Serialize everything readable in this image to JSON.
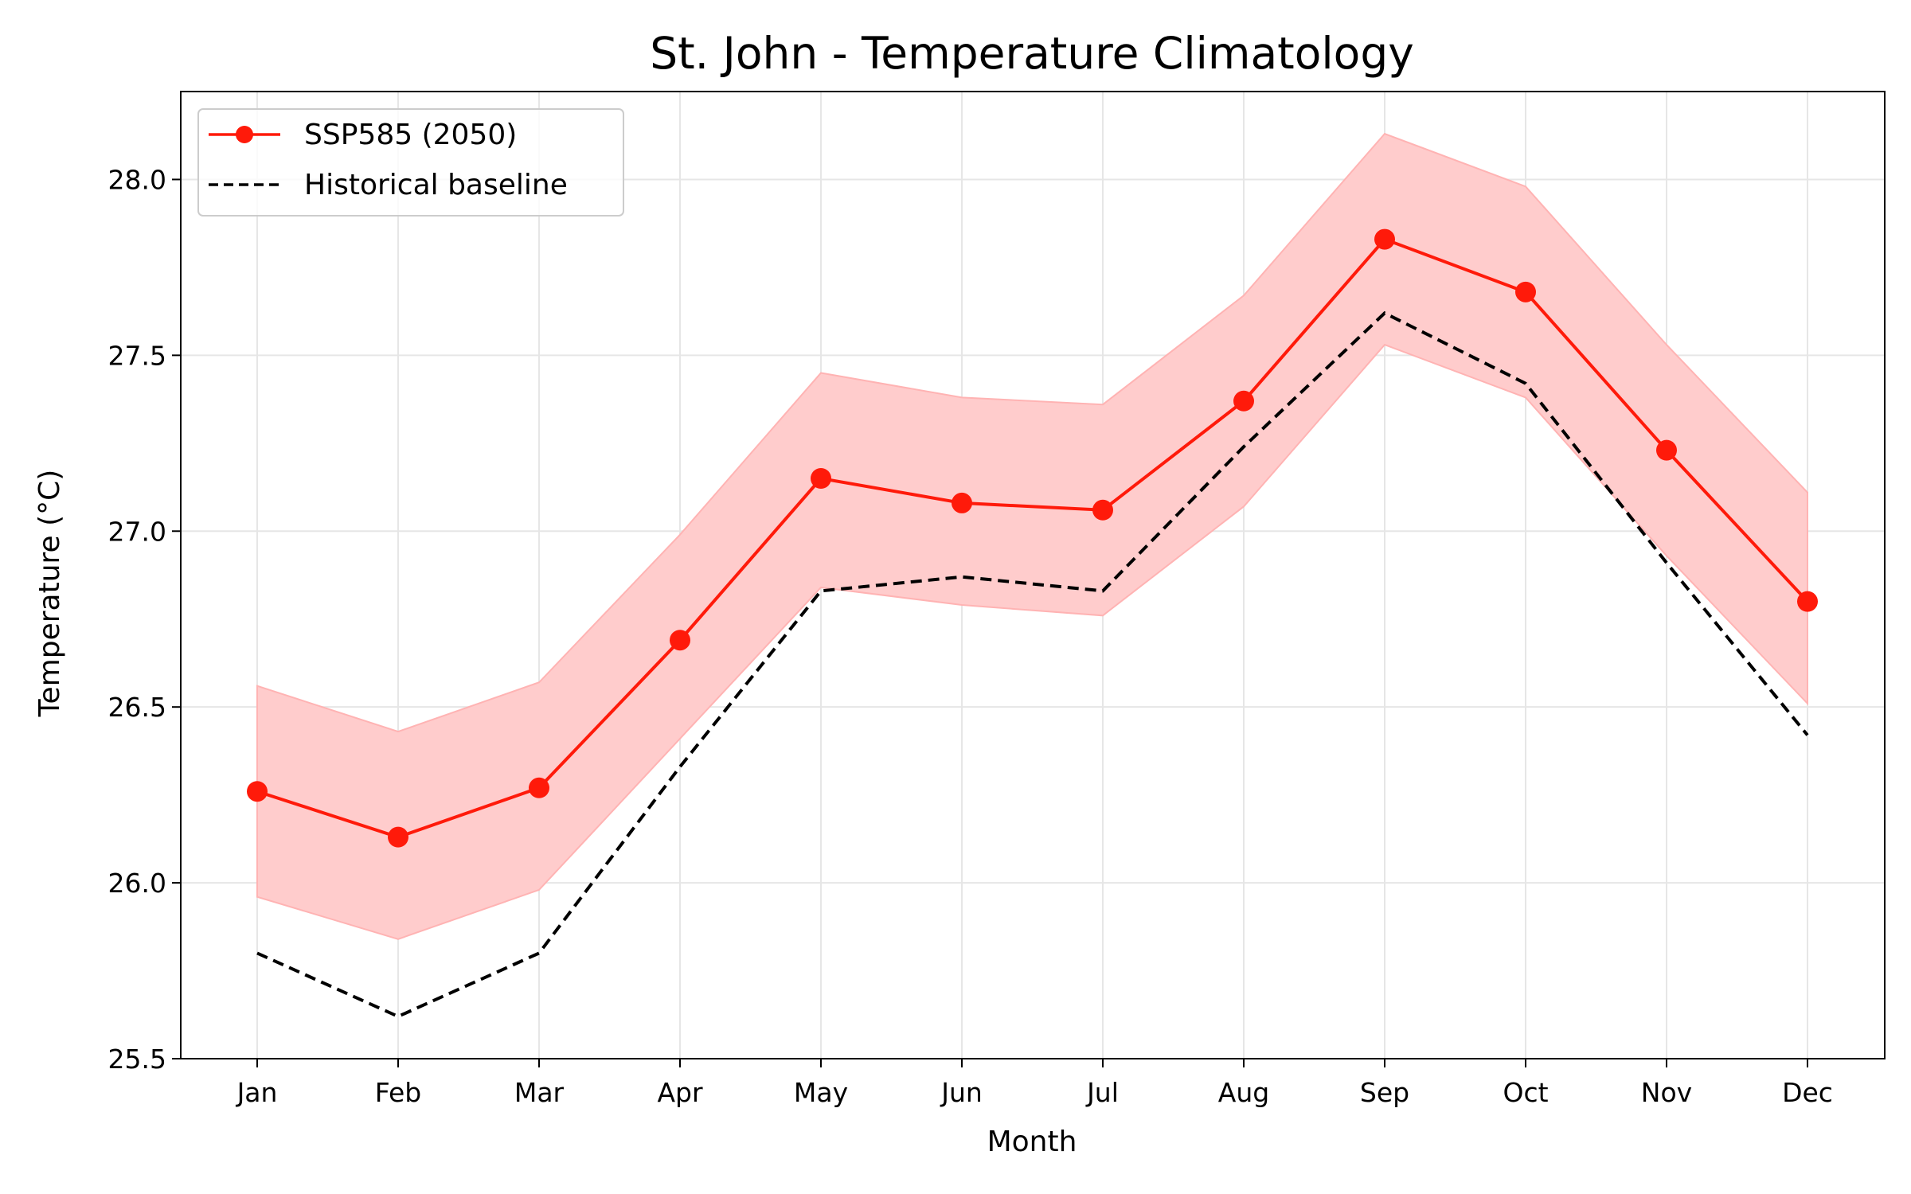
{
  "chart_data": {
    "type": "line",
    "title": "St. John - Temperature Climatology",
    "xlabel": "Month",
    "ylabel": "Temperature (°C)",
    "categories": [
      "Jan",
      "Feb",
      "Mar",
      "Apr",
      "May",
      "Jun",
      "Jul",
      "Aug",
      "Sep",
      "Oct",
      "Nov",
      "Dec"
    ],
    "ylim": [
      25.5,
      28.25
    ],
    "yticks": [
      "25.5",
      "26.0",
      "26.5",
      "27.0",
      "27.5",
      "28.0"
    ],
    "grid": true,
    "legend_position": "top-left",
    "series": [
      {
        "name": "SSP585 (2050)",
        "color": "#ff1a0a",
        "style": "solid-with-markers",
        "values": [
          26.26,
          26.13,
          26.27,
          26.69,
          27.15,
          27.08,
          27.06,
          27.37,
          27.83,
          27.68,
          27.23,
          26.8
        ],
        "band_lower": [
          25.96,
          25.84,
          25.98,
          26.41,
          26.84,
          26.79,
          26.76,
          27.07,
          27.53,
          27.38,
          26.93,
          26.51
        ],
        "band_upper": [
          26.56,
          26.43,
          26.57,
          26.99,
          27.45,
          27.38,
          27.36,
          27.67,
          28.13,
          27.98,
          27.53,
          27.11
        ],
        "band_color": "#ffcccc"
      },
      {
        "name": "Historical baseline",
        "color": "#000000",
        "style": "dashed",
        "values": [
          25.8,
          25.62,
          25.8,
          26.33,
          26.83,
          26.87,
          26.83,
          27.24,
          27.62,
          27.42,
          26.91,
          26.42
        ]
      }
    ]
  }
}
